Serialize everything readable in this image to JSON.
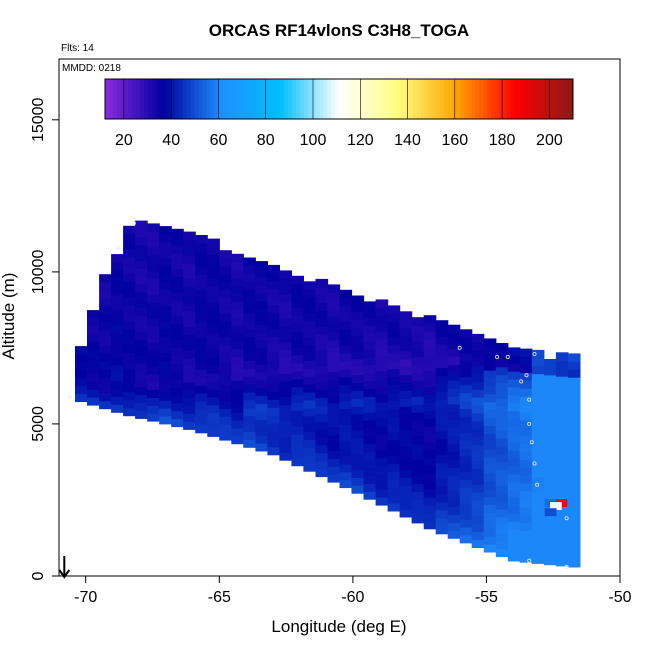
{
  "chart_data": {
    "type": "heatmap",
    "title": "ORCAS RF14vlonS C3H8_TOGA",
    "subtitle_flights": "Flts: 14",
    "subtitle_date": "MMDD: 0218",
    "xlabel": "Longitude (deg E)",
    "ylabel": "Altitude (m)",
    "xlim": [
      -71,
      -50
    ],
    "ylim": [
      0,
      17000
    ],
    "x_ticks": [
      -70,
      -65,
      -60,
      -55,
      -50
    ],
    "x_tick_labels": [
      "-70",
      "-65",
      "-60",
      "-55",
      "-50"
    ],
    "y_ticks": [
      0,
      5000,
      10000,
      15000
    ],
    "y_tick_labels": [
      "0",
      "5000",
      "10000",
      "15000"
    ],
    "colorbar": {
      "range": [
        12,
        210
      ],
      "ticks": [
        20,
        40,
        60,
        80,
        100,
        120,
        140,
        160,
        180,
        200
      ],
      "tick_labels": [
        "20",
        "40",
        "60",
        "80",
        "100",
        "120",
        "140",
        "160",
        "180",
        "200"
      ],
      "colors": [
        "#8a2be2",
        "#0000a0",
        "#1e90ff",
        "#00bfff",
        "#ffffff",
        "#ffff80",
        "#ffa500",
        "#ff0000",
        "#8b1a1a"
      ]
    },
    "region": {
      "left_edge": [
        [
          -70.4,
          5800
        ],
        [
          -70.3,
          7200
        ],
        [
          -69.8,
          8500
        ],
        [
          -69.3,
          9800
        ],
        [
          -68.6,
          11000
        ],
        [
          -68.3,
          11700
        ]
      ],
      "top_edge": [
        [
          -68.3,
          11700
        ],
        [
          -66,
          11100
        ],
        [
          -63,
          10100
        ],
        [
          -60,
          9200
        ],
        [
          -57,
          8300
        ],
        [
          -54,
          7500
        ],
        [
          -52.6,
          7100
        ]
      ],
      "right_edge": [
        [
          -52.6,
          7100
        ],
        [
          -52.2,
          3000
        ],
        [
          -52,
          2500
        ],
        [
          -51.8,
          300
        ]
      ],
      "bottom_edge": [
        [
          -51.8,
          300
        ],
        [
          -54,
          500
        ],
        [
          -57,
          1500
        ],
        [
          -60,
          2800
        ],
        [
          -63,
          4000
        ],
        [
          -66,
          4800
        ],
        [
          -68.5,
          5300
        ],
        [
          -70.4,
          5800
        ]
      ],
      "low_band": [
        [
          -68.5,
          6200
        ],
        [
          -62,
          6800
        ],
        [
          -56,
          7000
        ],
        [
          -53,
          6600
        ]
      ]
    },
    "hotspots": [
      {
        "lon": -52.2,
        "alt": 2400,
        "value": 185
      },
      {
        "lon": -52.6,
        "alt": 2400,
        "value": 55
      },
      {
        "lon": -52.4,
        "alt": 2300,
        "value": 110
      },
      {
        "lon": -52.6,
        "alt": 2100,
        "value": 50
      }
    ],
    "track_points": [
      [
        -70.6,
        5900
      ],
      [
        -68.8,
        10800
      ],
      [
        -68.2,
        11600
      ],
      [
        -56,
        7500
      ],
      [
        -54.6,
        7200
      ],
      [
        -54.2,
        7200
      ],
      [
        -53.2,
        7300
      ],
      [
        -53.5,
        6600
      ],
      [
        -53.7,
        6400
      ],
      [
        -53.4,
        5800
      ],
      [
        -53.4,
        5000
      ],
      [
        -53.3,
        4400
      ],
      [
        -53.2,
        3700
      ],
      [
        -53.1,
        3000
      ],
      [
        -52.0,
        1900
      ],
      [
        -53.4,
        500
      ],
      [
        -52.0,
        300
      ]
    ],
    "arrow": {
      "lon": -70.8,
      "alt": 0
    }
  }
}
